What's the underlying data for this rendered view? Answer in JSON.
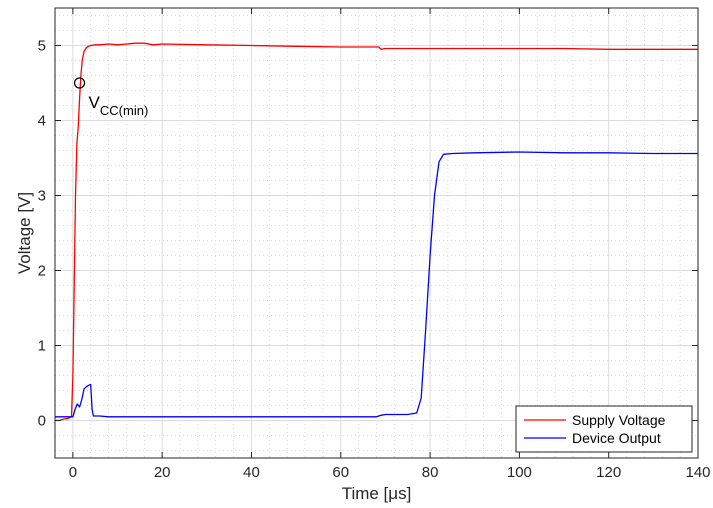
{
  "chart_data": {
    "type": "line",
    "xlabel": "Time [μs]",
    "ylabel": "Voltage [V]",
    "xlim": [
      -4,
      140
    ],
    "ylim": [
      -0.5,
      5.5
    ],
    "xticks": [
      0,
      20,
      40,
      60,
      80,
      100,
      120,
      140
    ],
    "yticks": [
      0,
      1,
      2,
      3,
      4,
      5
    ],
    "grid": true,
    "minor_grid": true,
    "legend_position": "bottom-right",
    "annotation": {
      "main": "V",
      "subscript": "CC(min)",
      "x": 1.5,
      "y": 4.5
    },
    "series": [
      {
        "name": "Supply Voltage",
        "color": "#ff0000",
        "x": [
          -4,
          -3,
          -2,
          -1,
          -0.3,
          0,
          0.3,
          0.6,
          0.9,
          1.2,
          1.5,
          1.8,
          2.1,
          2.5,
          3,
          3.5,
          4,
          5,
          6,
          8,
          10,
          12,
          14,
          16,
          18,
          20,
          30,
          40,
          50,
          60,
          68.5,
          69,
          70,
          80,
          90,
          100,
          110,
          120,
          130,
          140
        ],
        "y": [
          0.0,
          0.0,
          0.02,
          0.03,
          0.05,
          0.6,
          1.8,
          3.0,
          3.7,
          3.9,
          4.3,
          4.6,
          4.8,
          4.92,
          4.97,
          4.99,
          5.0,
          5.01,
          5.01,
          5.02,
          5.01,
          5.02,
          5.03,
          5.03,
          5.01,
          5.02,
          5.01,
          5.0,
          4.99,
          4.98,
          4.98,
          4.95,
          4.96,
          4.96,
          4.96,
          4.96,
          4.96,
          4.95,
          4.95,
          4.95
        ]
      },
      {
        "name": "Device Output",
        "color": "#0000ff",
        "x": [
          -4,
          -3,
          -2,
          -1,
          0,
          0.5,
          1,
          1.5,
          2,
          2.5,
          3,
          3.5,
          4,
          4.3,
          4.6,
          5,
          6,
          8,
          10,
          15,
          20,
          30,
          40,
          50,
          60,
          68,
          69,
          70,
          75,
          77,
          78,
          79,
          80,
          81,
          82,
          83,
          85,
          90,
          100,
          110,
          120,
          130,
          140
        ],
        "y": [
          0.05,
          0.05,
          0.05,
          0.05,
          0.05,
          0.15,
          0.22,
          0.18,
          0.28,
          0.42,
          0.45,
          0.47,
          0.48,
          0.15,
          0.06,
          0.06,
          0.06,
          0.05,
          0.05,
          0.05,
          0.05,
          0.05,
          0.05,
          0.05,
          0.05,
          0.05,
          0.07,
          0.08,
          0.08,
          0.1,
          0.3,
          1.2,
          2.2,
          3.0,
          3.45,
          3.55,
          3.56,
          3.57,
          3.58,
          3.57,
          3.57,
          3.56,
          3.56
        ]
      }
    ]
  }
}
